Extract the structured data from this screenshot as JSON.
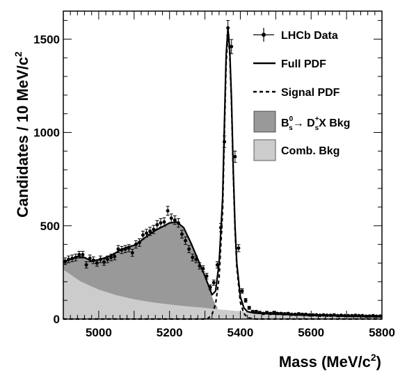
{
  "chart_data": {
    "type": "line",
    "title": "",
    "xlabel": "Mass (MeV/c",
    "xlabel_sup": "2",
    "xlabel_close": ")",
    "ylabel": "Candidates / 10 MeV/c",
    "ylabel_sup": "2",
    "xlim": [
      4900,
      5800
    ],
    "ylim": [
      0,
      1650
    ],
    "x_ticks": [
      5000,
      5200,
      5400,
      5600,
      5800
    ],
    "y_ticks": [
      0,
      500,
      1000,
      1500
    ],
    "grid": false,
    "legend_position": "top-right",
    "legend": {
      "data": "LHCb Data",
      "full": "Full PDF",
      "signal": "Signal PDF",
      "bs_pre": "B",
      "bs_sup": "0",
      "bs_sub": "s",
      "bs_arrow": "→ D",
      "ds_sup": "+",
      "ds_sub": "s",
      "bs_post": "X Bkg",
      "comb": "Comb. Bkg"
    },
    "colors": {
      "bs_bkg": "#999999",
      "comb_bkg": "#cccccc",
      "line": "#000000"
    },
    "series": [
      {
        "name": "LHCb Data",
        "kind": "points",
        "x": [
          4905,
          4915,
          4925,
          4935,
          4945,
          4955,
          4965,
          4975,
          4985,
          4995,
          5005,
          5015,
          5025,
          5035,
          5045,
          5055,
          5065,
          5075,
          5085,
          5095,
          5105,
          5115,
          5125,
          5135,
          5145,
          5155,
          5165,
          5175,
          5185,
          5195,
          5205,
          5215,
          5225,
          5235,
          5245,
          5255,
          5265,
          5275,
          5285,
          5295,
          5305,
          5315,
          5325,
          5335,
          5345,
          5355,
          5365,
          5375,
          5385,
          5395,
          5405,
          5415,
          5425,
          5435,
          5445,
          5455,
          5465,
          5475,
          5485,
          5495,
          5505,
          5515,
          5525,
          5535,
          5545,
          5555,
          5565,
          5575,
          5585,
          5595,
          5605,
          5615,
          5625,
          5635,
          5645,
          5655,
          5665,
          5675,
          5685,
          5695,
          5705,
          5715,
          5725,
          5735,
          5745,
          5755,
          5765,
          5775,
          5785,
          5795
        ],
        "y": [
          310,
          320,
          325,
          330,
          345,
          345,
          290,
          325,
          315,
          300,
          320,
          305,
          320,
          330,
          335,
          375,
          370,
          375,
          380,
          355,
          400,
          410,
          450,
          460,
          470,
          480,
          505,
          515,
          520,
          580,
          540,
          530,
          515,
          455,
          420,
          375,
          330,
          320,
          285,
          270,
          230,
          170,
          195,
          290,
          490,
          950,
          1560,
          1460,
          870,
          380,
          150,
          100,
          60,
          40,
          40,
          35,
          30,
          35,
          30,
          35,
          30,
          30,
          28,
          30,
          25,
          25,
          28,
          25,
          25,
          22,
          22,
          22,
          20,
          22,
          20,
          20,
          22,
          18,
          20,
          18,
          18,
          18,
          20,
          18,
          18,
          15,
          16,
          18,
          15,
          16
        ],
        "yerr": [
          18,
          18,
          18,
          18,
          18,
          18,
          17,
          18,
          18,
          17,
          18,
          17,
          18,
          18,
          18,
          19,
          19,
          19,
          19,
          19,
          20,
          20,
          21,
          21,
          22,
          22,
          22,
          23,
          23,
          24,
          23,
          23,
          23,
          21,
          20,
          19,
          18,
          18,
          17,
          16,
          15,
          13,
          14,
          17,
          22,
          31,
          40,
          38,
          30,
          19,
          12,
          10,
          8,
          6,
          6,
          6,
          5,
          6,
          5,
          6,
          5,
          5,
          5,
          5,
          5,
          5,
          5,
          5,
          5,
          5,
          5,
          5,
          4,
          5,
          4,
          4,
          5,
          4,
          4,
          4,
          4,
          4,
          4,
          4,
          4,
          4,
          4,
          4,
          4,
          4
        ]
      },
      {
        "name": "Full PDF",
        "kind": "line",
        "x": [
          4900,
          4920,
          4940,
          4960,
          4980,
          5000,
          5020,
          5040,
          5060,
          5080,
          5100,
          5120,
          5140,
          5160,
          5180,
          5200,
          5220,
          5240,
          5260,
          5280,
          5300,
          5320,
          5330,
          5340,
          5350,
          5355,
          5360,
          5365,
          5370,
          5375,
          5380,
          5385,
          5390,
          5400,
          5410,
          5420,
          5440,
          5480,
          5520,
          5560,
          5600,
          5650,
          5700,
          5750,
          5800
        ],
        "y": [
          305,
          320,
          335,
          330,
          310,
          318,
          330,
          345,
          370,
          385,
          395,
          420,
          450,
          475,
          495,
          515,
          520,
          490,
          410,
          320,
          230,
          130,
          150,
          300,
          650,
          1050,
          1420,
          1560,
          1450,
          1180,
          800,
          500,
          300,
          120,
          60,
          40,
          32,
          28,
          25,
          22,
          20,
          18,
          15,
          13,
          12
        ]
      },
      {
        "name": "Signal PDF",
        "kind": "line",
        "x": [
          4900,
          5300,
          5310,
          5320,
          5330,
          5340,
          5350,
          5355,
          5360,
          5365,
          5370,
          5375,
          5380,
          5385,
          5390,
          5400,
          5410,
          5420,
          5440,
          5800
        ],
        "y": [
          0,
          0,
          5,
          25,
          80,
          220,
          580,
          1000,
          1370,
          1530,
          1420,
          1160,
          780,
          480,
          280,
          90,
          30,
          8,
          0,
          0
        ]
      },
      {
        "name": "Bs Bkg",
        "kind": "area",
        "x": [
          4900,
          4920,
          4940,
          4960,
          4980,
          5000,
          5020,
          5040,
          5060,
          5080,
          5100,
          5120,
          5140,
          5160,
          5180,
          5200,
          5220,
          5240,
          5260,
          5280,
          5300,
          5310,
          5320,
          5330,
          5335
        ],
        "y": [
          305,
          320,
          335,
          330,
          310,
          318,
          330,
          345,
          370,
          385,
          395,
          420,
          450,
          475,
          495,
          515,
          520,
          490,
          410,
          320,
          230,
          180,
          120,
          75,
          65
        ]
      },
      {
        "name": "Comb. Bkg",
        "kind": "area",
        "x": [
          4900,
          4950,
          5000,
          5050,
          5100,
          5150,
          5200,
          5250,
          5300,
          5350,
          5400,
          5450,
          5500,
          5550,
          5600,
          5650,
          5700,
          5750,
          5800
        ],
        "y": [
          265,
          200,
          158,
          128,
          106,
          90,
          78,
          68,
          60,
          50,
          42,
          37,
          33,
          30,
          27,
          24,
          21,
          19,
          17
        ]
      }
    ]
  }
}
